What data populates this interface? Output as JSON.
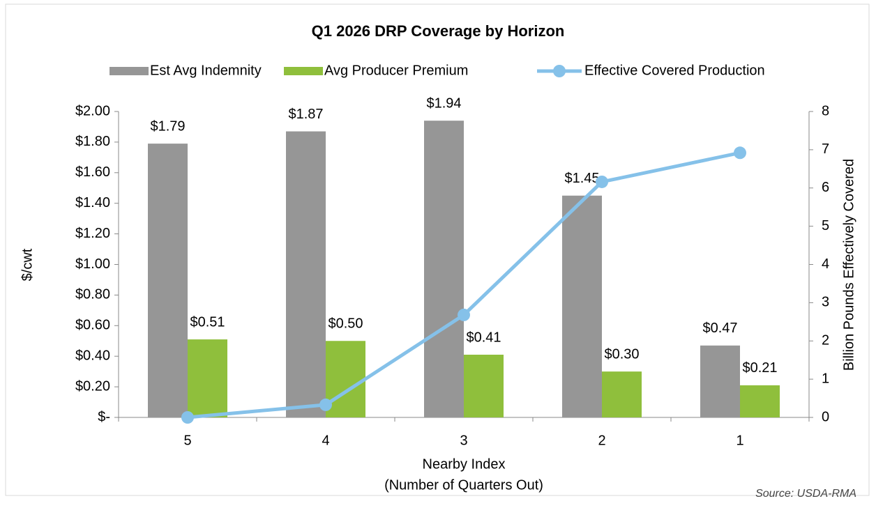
{
  "chart_data": {
    "type": "bar",
    "title": "Q1 2026 DRP Coverage by Horizon",
    "x_label": [
      "Nearby Index",
      "(Number of Quarters Out)"
    ],
    "y_label": "$/cwt",
    "y2_label": "Billion Pounds Effectively Covered",
    "source": "Source: USDA-RMA",
    "categories": [
      "5",
      "4",
      "3",
      "2",
      "1"
    ],
    "series": [
      {
        "name": "Est Avg Indemnity",
        "type": "bar",
        "color": "#969696",
        "values": [
          1.79,
          1.87,
          1.94,
          1.45,
          0.47
        ],
        "value_labels": [
          "$1.79",
          "$1.87",
          "$1.94",
          "$1.45",
          "$0.47"
        ]
      },
      {
        "name": "Avg Producer Premium",
        "type": "bar",
        "color": "#8fbf3c",
        "values": [
          0.51,
          0.5,
          0.41,
          0.3,
          0.21
        ],
        "value_labels": [
          "$0.51",
          "$0.50",
          "$0.41",
          "$0.30",
          "$0.21"
        ]
      },
      {
        "name": "Effective Covered Production",
        "type": "line",
        "axis": "y2",
        "color": "#85c1e9",
        "values": [
          0,
          0.33,
          2.68,
          6.16,
          6.92
        ]
      }
    ],
    "ylim": [
      0,
      2
    ],
    "yticks": [
      {
        "value": 0,
        "label": "$-"
      },
      {
        "value": 0.2,
        "label": "$0.20"
      },
      {
        "value": 0.4,
        "label": "$0.40"
      },
      {
        "value": 0.6,
        "label": "$0.60"
      },
      {
        "value": 0.8,
        "label": "$0.80"
      },
      {
        "value": 1.0,
        "label": "$1.00"
      },
      {
        "value": 1.2,
        "label": "$1.20"
      },
      {
        "value": 1.4,
        "label": "$1.40"
      },
      {
        "value": 1.6,
        "label": "$1.60"
      },
      {
        "value": 1.8,
        "label": "$1.80"
      },
      {
        "value": 2.0,
        "label": "$2.00"
      }
    ],
    "y2lim": [
      0,
      8
    ],
    "y2ticks": [
      0,
      1,
      2,
      3,
      4,
      5,
      6,
      7,
      8
    ],
    "legend": "top",
    "grid": false
  }
}
